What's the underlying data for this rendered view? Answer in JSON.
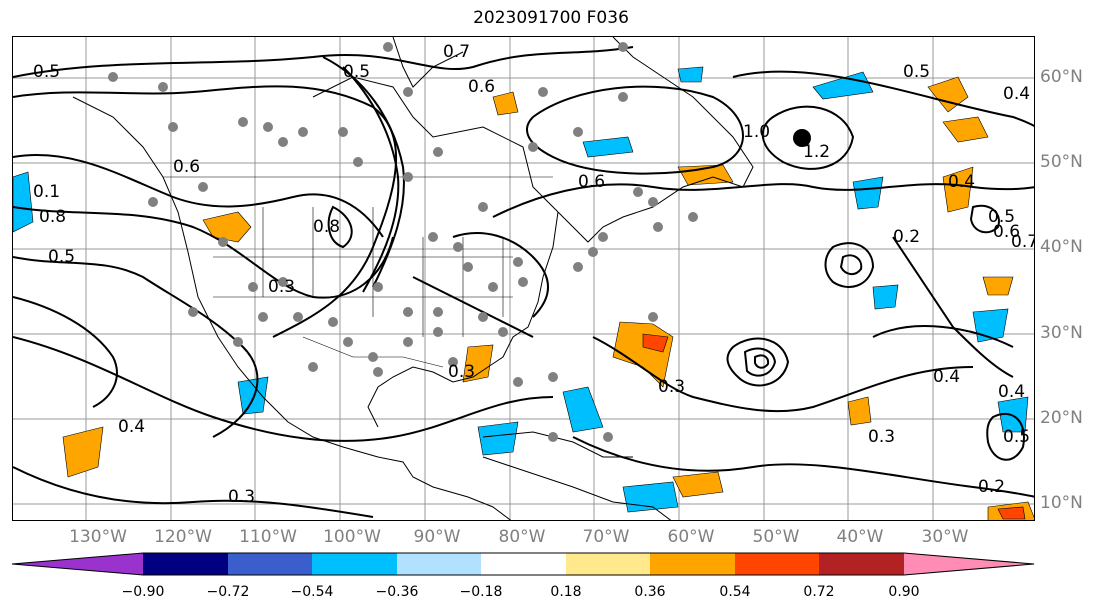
{
  "title": "2023091700 F036",
  "latitude_labels": [
    "60°N",
    "50°N",
    "40°N",
    "30°N",
    "20°N",
    "10°N"
  ],
  "longitude_labels": [
    "130°W",
    "120°W",
    "110°W",
    "100°W",
    "90°W",
    "80°W",
    "70°W",
    "60°W",
    "50°W",
    "40°W",
    "30°W"
  ],
  "contour_labels": [
    "0.5",
    "0.6",
    "0.7",
    "0.5",
    "0.6",
    "0.8",
    "1.0",
    "1.2",
    "0.5",
    "0.4",
    "0.4",
    "0.1",
    "0.8",
    "0.5",
    "0.3",
    "0.4",
    "0.3",
    "0.2",
    "0.3",
    "0.3",
    "0.5",
    "0.6",
    "0.7",
    "0.4",
    "0.3",
    "0.4",
    "0.2",
    "0.5",
    "0.6"
  ],
  "colorbar": {
    "ticks": [
      "−0.90",
      "−0.72",
      "−0.54",
      "−0.36",
      "−0.18",
      "0.18",
      "0.36",
      "0.54",
      "0.72",
      "0.90"
    ],
    "colors": [
      "#9a32cd",
      "#000080",
      "#3a5fcd",
      "#00bfff",
      "#b0e2ff",
      "#ffffff",
      "#ffe98c",
      "#ffa500",
      "#ff4500",
      "#b22222",
      "#ff8cb4"
    ]
  },
  "colors": {
    "contour": "#000000",
    "coast": "#000000",
    "grid": "#999999",
    "station_dot": "#808080"
  }
}
